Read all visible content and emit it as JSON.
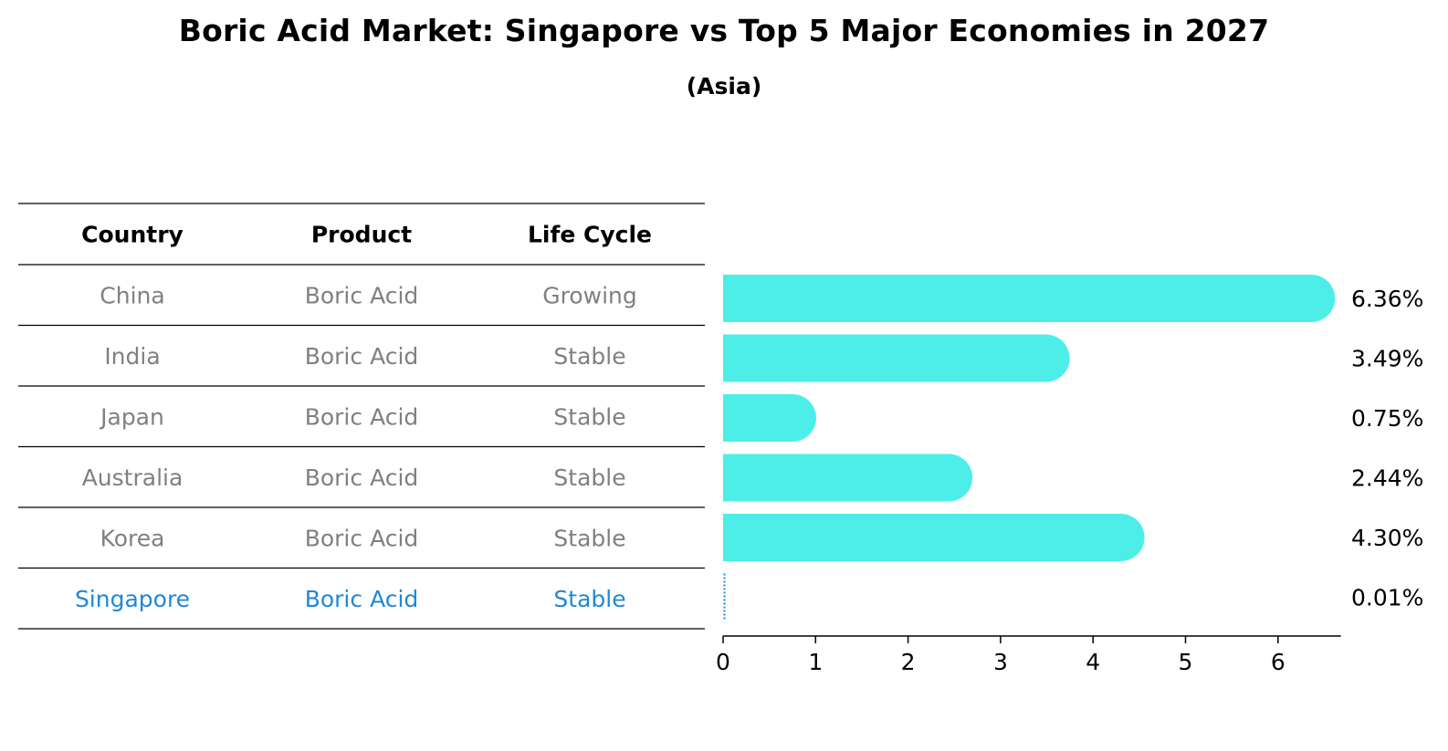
{
  "title": "Boric Acid Market: Singapore vs Top 5 Major Economies in 2027",
  "subtitle": "(Asia)",
  "colors": {
    "bar": "#4deee8",
    "highlight": "#1f88d6",
    "muted_text": "#808080",
    "header_text": "#000000",
    "rule_line": "#000000"
  },
  "table": {
    "headers": [
      "Country",
      "Product",
      "Life Cycle"
    ],
    "rows": [
      {
        "country": "China",
        "product": "Boric Acid",
        "life_cycle": "Growing",
        "highlight": false
      },
      {
        "country": "India",
        "product": "Boric Acid",
        "life_cycle": "Stable",
        "highlight": false
      },
      {
        "country": "Japan",
        "product": "Boric Acid",
        "life_cycle": "Stable",
        "highlight": false
      },
      {
        "country": "Australia",
        "product": "Boric Acid",
        "life_cycle": "Stable",
        "highlight": false
      },
      {
        "country": "Korea",
        "product": "Boric Acid",
        "life_cycle": "Stable",
        "highlight": false
      },
      {
        "country": "Singapore",
        "product": "Boric Acid",
        "life_cycle": "Stable",
        "highlight": true
      }
    ]
  },
  "chart_data": {
    "type": "bar",
    "orientation": "horizontal",
    "categories": [
      "China",
      "India",
      "Japan",
      "Australia",
      "Korea",
      "Singapore"
    ],
    "values": [
      6.36,
      3.49,
      0.75,
      2.44,
      4.3,
      0.01
    ],
    "value_labels": [
      "6.36%",
      "3.49%",
      "0.75%",
      "2.44%",
      "4.30%",
      "0.01%"
    ],
    "xlim": [
      0,
      6.68
    ],
    "xticks": [
      0,
      1,
      2,
      3,
      4,
      5,
      6
    ],
    "title": "Boric Acid Market: Singapore vs Top 5 Major Economies in 2027",
    "subtitle": "(Asia)",
    "grid": false
  }
}
